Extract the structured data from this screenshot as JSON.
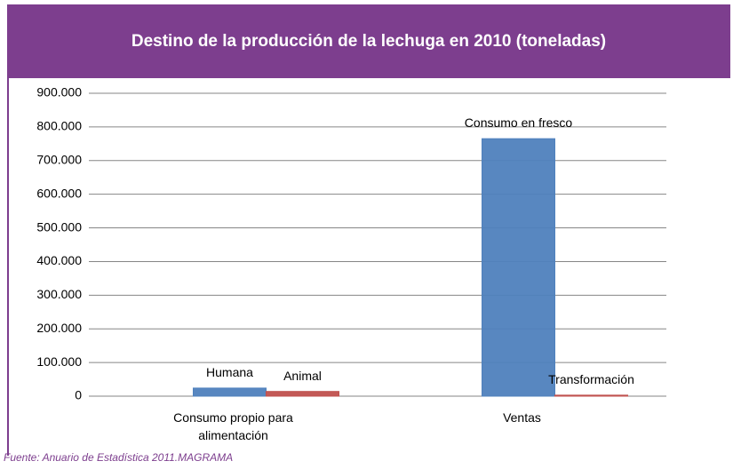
{
  "chart_data": {
    "type": "bar",
    "title": "Destino de la producción de la lechuga en 2010 (toneladas)",
    "categories": [
      "Consumo propio para alimentación",
      "Ventas"
    ],
    "series": [
      {
        "color": "#4f81bd",
        "values": [
          24000,
          765000
        ],
        "labels": [
          "Humana",
          "Consumo en fresco"
        ]
      },
      {
        "color": "#c0504d",
        "values": [
          14000,
          3000
        ],
        "labels": [
          "Animal",
          "Transformación"
        ]
      }
    ],
    "ylim": [
      0,
      900000
    ],
    "yticks": [
      0,
      {
        "value": 100000,
        "label": "100.000"
      },
      {
        "value": 200000,
        "label": "200.000"
      },
      {
        "value": 300000,
        "label": "300.000"
      },
      {
        "value": 400000,
        "label": "400.000"
      },
      {
        "value": 500000,
        "label": "500.000"
      },
      {
        "value": 600000,
        "label": "600.000"
      },
      {
        "value": 700000,
        "label": "700.000"
      },
      {
        "value": 800000,
        "label": "800.000"
      },
      {
        "value": 900000,
        "label": "900.000"
      }
    ],
    "grid": true,
    "source": "Fuente:  Anuario de Estadística 2011.MAGRAMA"
  }
}
